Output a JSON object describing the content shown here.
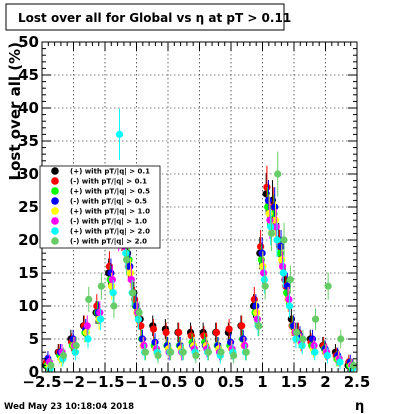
{
  "chart_data": {
    "type": "scatter",
    "title": "Lost over all for Global vs   η at pT > 0.11",
    "xlabel": "η",
    "ylabel": "Lost over all (%)",
    "xlim": [
      -2.5,
      2.5
    ],
    "ylim": [
      0,
      50
    ],
    "xticks": [
      -2.5,
      -2,
      -1.5,
      -1,
      -0.5,
      0,
      0.5,
      1,
      1.5,
      2,
      2.5
    ],
    "xtick_labels": [
      "−2.5",
      "−2",
      "−1.5",
      "−1",
      "−0.5",
      "0",
      "0.5",
      "1",
      "1.5",
      "2",
      "2.5"
    ],
    "yticks": [
      0,
      5,
      10,
      15,
      20,
      25,
      30,
      35,
      40,
      45,
      50
    ],
    "ytick_labels": [
      "0",
      "5",
      "10",
      "15",
      "20",
      "25",
      "30",
      "35",
      "40",
      "45",
      "50"
    ],
    "grid": true,
    "legend_position": "left",
    "footer": "Wed May 23 10:18:04 2018",
    "series": [
      {
        "name": "(+) with pT/|q| > 0.1",
        "color": "#000000",
        "x": [
          -2.4,
          -2.2,
          -2.0,
          -1.8,
          -1.6,
          -1.4,
          -1.3,
          -1.2,
          -1.1,
          -1.0,
          -0.9,
          -0.7,
          -0.5,
          -0.3,
          -0.1,
          0.1,
          0.3,
          0.5,
          0.7,
          0.9,
          1.0,
          1.1,
          1.2,
          1.3,
          1.4,
          1.5,
          1.6,
          1.8,
          2.0,
          2.2,
          2.4
        ],
        "y": [
          1,
          3,
          5,
          7,
          9,
          15,
          24,
          22,
          18,
          12,
          8,
          7,
          6.5,
          6,
          6,
          6,
          6,
          6,
          7,
          10,
          18,
          27,
          26,
          20,
          14,
          8,
          6,
          5,
          4,
          3,
          1
        ]
      },
      {
        "name": "(-) with pT/|q| > 0.1",
        "color": "#ff0000",
        "x": [
          -2.4,
          -2.2,
          -2.0,
          -1.8,
          -1.6,
          -1.4,
          -1.3,
          -1.2,
          -1.1,
          -1.0,
          -0.9,
          -0.7,
          -0.5,
          -0.3,
          -0.1,
          0.1,
          0.3,
          0.5,
          0.7,
          0.9,
          1.0,
          1.1,
          1.2,
          1.3,
          1.4,
          1.5,
          1.6,
          1.8,
          2.0,
          2.2,
          2.4
        ],
        "y": [
          1.5,
          3,
          4.5,
          7,
          10,
          16,
          25,
          21,
          16,
          11,
          7,
          6.5,
          6,
          6,
          5.5,
          5.5,
          6,
          6.5,
          7,
          11,
          19,
          28,
          25,
          19,
          13,
          7,
          6,
          4.5,
          4,
          2.5,
          1.5
        ]
      },
      {
        "name": "(+) with pT/|q| > 0.5",
        "color": "#00ff00",
        "x": [
          -2.4,
          -2.2,
          -2.0,
          -1.8,
          -1.6,
          -1.4,
          -1.3,
          -1.2,
          -1.1,
          -1.0,
          -0.9,
          -0.7,
          -0.5,
          -0.3,
          -0.1,
          0.1,
          0.3,
          0.5,
          0.7,
          0.9,
          1.0,
          1.1,
          1.2,
          1.3,
          1.4,
          1.5,
          1.6,
          1.8,
          2.0,
          2.2,
          2.4
        ],
        "y": [
          1,
          2.5,
          4,
          6,
          9,
          14,
          26,
          23,
          17,
          10,
          5,
          4,
          4,
          4,
          4.5,
          4.5,
          4,
          4,
          5,
          9,
          17,
          25,
          24,
          18,
          12,
          7,
          5,
          4,
          3.5,
          2,
          1
        ]
      },
      {
        "name": "(-) with pT/|q| > 0.5",
        "color": "#0000ff",
        "x": [
          -2.4,
          -2.2,
          -2.0,
          -1.8,
          -1.6,
          -1.4,
          -1.3,
          -1.2,
          -1.1,
          -1.0,
          -0.9,
          -0.7,
          -0.5,
          -0.3,
          -0.1,
          0.1,
          0.3,
          0.5,
          0.7,
          0.9,
          1.0,
          1.1,
          1.2,
          1.3,
          1.4,
          1.5,
          1.6,
          1.8,
          2.0,
          2.2,
          2.4
        ],
        "y": [
          2,
          3,
          5,
          6.5,
          9,
          15,
          23,
          22,
          16,
          10,
          5,
          4.5,
          4,
          4,
          4,
          4,
          4,
          4.5,
          5,
          10,
          18,
          26,
          25,
          19,
          13,
          7,
          5.5,
          5,
          3.5,
          2.5,
          1.5
        ]
      },
      {
        "name": "(+) with pT/|q| > 1.0",
        "color": "#ffff00",
        "x": [
          -2.4,
          -2.2,
          -2.0,
          -1.8,
          -1.6,
          -1.4,
          -1.3,
          -1.2,
          -1.1,
          -1.0,
          -0.9,
          -0.7,
          -0.5,
          -0.3,
          -0.1,
          0.1,
          0.3,
          0.5,
          0.7,
          0.9,
          1.0,
          1.1,
          1.2,
          1.3,
          1.4,
          1.5,
          1.6,
          1.8,
          2.0,
          2.2,
          2.4
        ],
        "y": [
          1,
          2,
          4,
          6,
          8,
          13,
          22,
          20,
          15,
          9,
          4,
          3.5,
          3.5,
          3.5,
          4,
          4,
          3.5,
          3.5,
          4,
          9,
          16,
          24,
          23,
          17,
          11,
          6,
          4.5,
          3.5,
          3,
          2,
          1
        ]
      },
      {
        "name": "(-) with pT/|q| > 1.0",
        "color": "#ff00ff",
        "x": [
          -2.4,
          -2.2,
          -2.0,
          -1.8,
          -1.6,
          -1.4,
          -1.3,
          -1.2,
          -1.1,
          -1.0,
          -0.9,
          -0.7,
          -0.5,
          -0.3,
          -0.1,
          0.1,
          0.3,
          0.5,
          0.7,
          0.9,
          1.0,
          1.1,
          1.2,
          1.3,
          1.4,
          1.5,
          1.6,
          1.8,
          2.0,
          2.2,
          2.4
        ],
        "y": [
          1.5,
          3,
          4,
          7,
          9,
          14,
          21,
          19,
          14,
          9,
          4,
          3.5,
          3,
          3,
          3.5,
          3.5,
          3,
          3.5,
          4,
          8,
          15,
          23,
          22,
          16,
          11,
          6,
          4.5,
          4,
          3,
          2,
          1
        ]
      },
      {
        "name": "(+) with pT/|q| > 2.0",
        "color": "#00ffff",
        "x": [
          -2.4,
          -2.2,
          -2.0,
          -1.8,
          -1.6,
          -1.4,
          -1.3,
          -1.2,
          -1.1,
          -1.0,
          -0.9,
          -0.7,
          -0.5,
          -0.3,
          -0.1,
          0.1,
          0.3,
          0.5,
          0.7,
          0.9,
          1.0,
          1.1,
          1.2,
          1.3,
          1.4,
          1.5,
          1.6,
          1.8,
          2.0,
          2.2,
          2.4
        ],
        "y": [
          0.5,
          2,
          3,
          5,
          8,
          12,
          36,
          18,
          12,
          8,
          3,
          3,
          3,
          3,
          3,
          3,
          2.5,
          3,
          3,
          7,
          14,
          22,
          20,
          15,
          10,
          5,
          4,
          3,
          2.5,
          1.5,
          0.5
        ]
      },
      {
        "name": "(-) with pT/|q| > 2.0",
        "color": "#66cc66",
        "x": [
          -2.4,
          -2.2,
          -2.0,
          -1.8,
          -1.6,
          -1.4,
          -1.3,
          -1.2,
          -1.1,
          -1.0,
          -0.9,
          -0.7,
          -0.5,
          -0.3,
          -0.1,
          0.1,
          0.3,
          0.5,
          0.7,
          0.9,
          1.0,
          1.1,
          1.2,
          1.3,
          1.4,
          1.5,
          1.6,
          1.8,
          2.0,
          2.2,
          2.4
        ],
        "y": [
          1,
          2.5,
          4,
          11,
          13,
          10,
          22,
          17,
          12,
          9,
          3,
          2.5,
          3,
          3,
          2.5,
          3,
          3,
          2.5,
          3,
          7,
          13,
          21,
          30,
          20,
          14,
          6,
          5,
          8,
          13,
          5,
          1
        ]
      }
    ]
  },
  "legend": {
    "entries": [
      {
        "label": "(+) with pT/|q| > 0.1",
        "color": "#000000"
      },
      {
        "label": "(-) with pT/|q| > 0.1",
        "color": "#ff0000"
      },
      {
        "label": "(+) with pT/|q| > 0.5",
        "color": "#00ff00"
      },
      {
        "label": "(-) with pT/|q| > 0.5",
        "color": "#0000ff"
      },
      {
        "label": "(+) with pT/|q| > 1.0",
        "color": "#ffff00"
      },
      {
        "label": "(-) with pT/|q| > 1.0",
        "color": "#ff00ff"
      },
      {
        "label": "(+) with pT/|q| > 2.0",
        "color": "#00ffff"
      },
      {
        "label": "(-) with pT/|q| > 2.0",
        "color": "#66cc66"
      }
    ]
  }
}
